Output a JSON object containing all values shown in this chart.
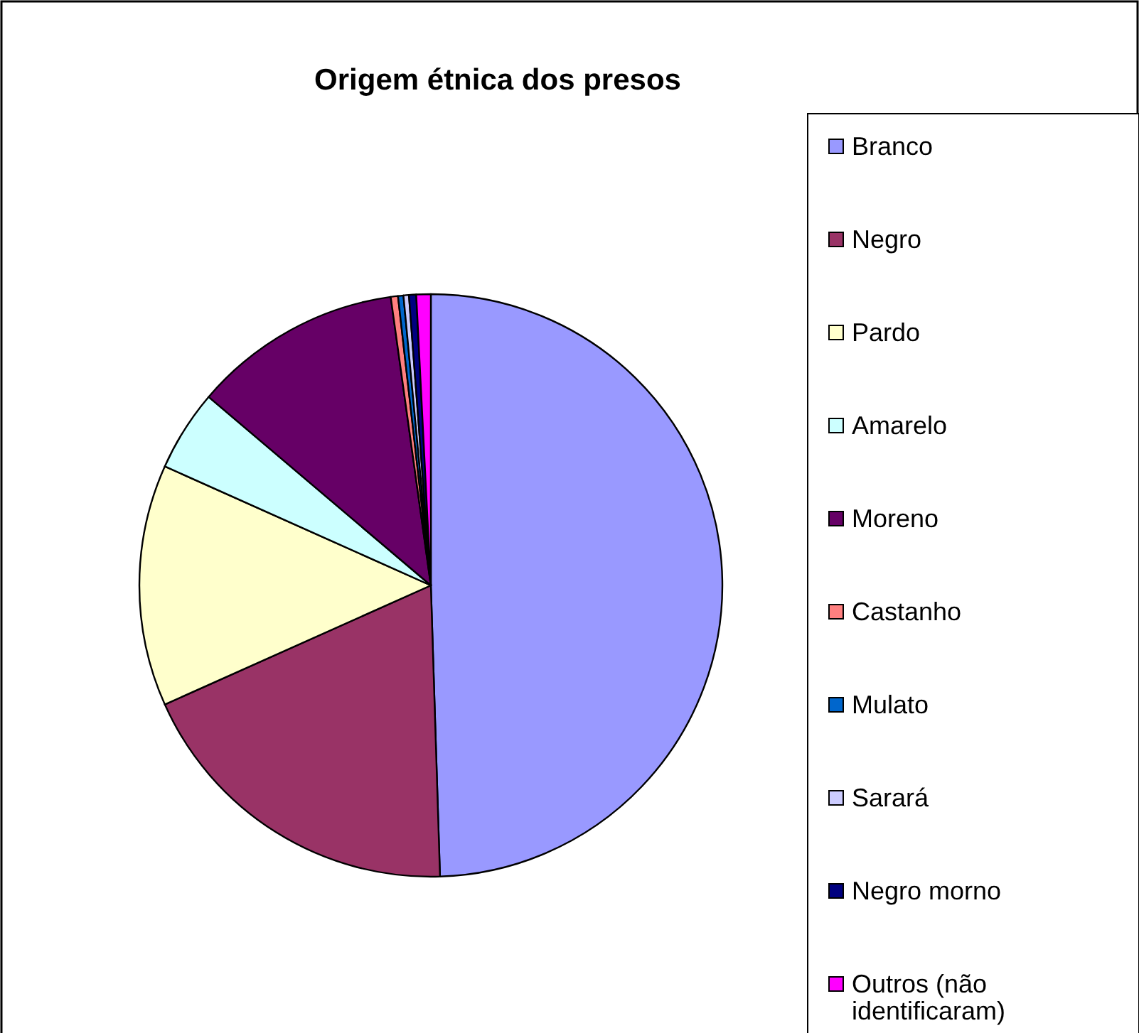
{
  "chart_data": {
    "type": "pie",
    "title": "Origem étnica dos presos",
    "categories": [
      "Branco",
      "Negro",
      "Pardo",
      "Amarelo",
      "Moreno",
      "Castanho",
      "Mulato",
      "Sarará",
      "Negro morno",
      "Outros (não identificaram)"
    ],
    "values": [
      49.5,
      18.8,
      13.4,
      4.5,
      11.6,
      0.4,
      0.3,
      0.3,
      0.4,
      0.8
    ],
    "colors": [
      "#9999ff",
      "#993366",
      "#ffffcc",
      "#ccffff",
      "#660066",
      "#ff8080",
      "#0066cc",
      "#ccccff",
      "#000080",
      "#ff00ff"
    ],
    "legend": "right"
  }
}
